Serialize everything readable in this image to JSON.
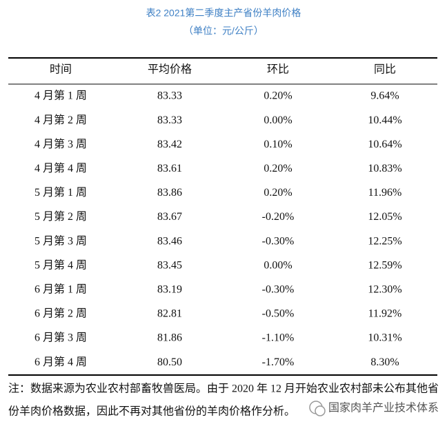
{
  "header": {
    "title": "表2  2021第二季度主产省份羊肉价格",
    "subtitle": "（单位：元/公斤）"
  },
  "table": {
    "columns": [
      "时间",
      "平均价格",
      "环比",
      "同比"
    ],
    "rows": [
      [
        "4 月第 1 周",
        "83.33",
        "0.20%",
        "9.64%"
      ],
      [
        "4 月第 2 周",
        "83.33",
        "0.00%",
        "10.44%"
      ],
      [
        "4 月第 3 周",
        "83.42",
        "0.10%",
        "10.64%"
      ],
      [
        "4 月第 4 周",
        "83.61",
        "0.20%",
        "10.83%"
      ],
      [
        "5 月第 1 周",
        "83.86",
        "0.20%",
        "11.96%"
      ],
      [
        "5 月第 2 周",
        "83.67",
        "-0.20%",
        "12.05%"
      ],
      [
        "5 月第 3 周",
        "83.46",
        "-0.30%",
        "12.25%"
      ],
      [
        "5 月第 4 周",
        "83.45",
        "0.00%",
        "12.59%"
      ],
      [
        "6 月第 1 周",
        "83.19",
        "-0.30%",
        "12.30%"
      ],
      [
        "6 月第 2 周",
        "82.81",
        "-0.50%",
        "11.92%"
      ],
      [
        "6 月第 3 周",
        "81.86",
        "-1.10%",
        "10.31%"
      ],
      [
        "6 月第 4 周",
        "80.50",
        "-1.70%",
        "8.30%"
      ]
    ]
  },
  "note": [
    "注：数据来源为农业农村部畜牧兽医局。由于 2020 年 12 月开始农业农村部未公布其他省",
    "份羊肉价格数据，因此不再对其他省份的羊肉价格作分析。"
  ],
  "watermark": "国家肉羊产业技术体系"
}
